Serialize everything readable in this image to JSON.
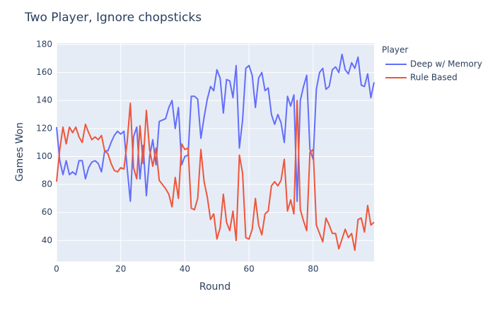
{
  "chart_data": {
    "type": "line",
    "title": "Two Player, Ignore chopsticks",
    "x_label": "Round",
    "y_label": "Games Won",
    "legend_title": "Player",
    "x": [
      0,
      1,
      2,
      3,
      4,
      5,
      6,
      7,
      8,
      9,
      10,
      11,
      12,
      13,
      14,
      15,
      16,
      17,
      18,
      19,
      20,
      21,
      22,
      23,
      24,
      25,
      26,
      27,
      28,
      29,
      30,
      31,
      32,
      33,
      34,
      35,
      36,
      37,
      38,
      39,
      40,
      41,
      42,
      43,
      44,
      45,
      46,
      47,
      48,
      49,
      50,
      51,
      52,
      53,
      54,
      55,
      56,
      57,
      58,
      59,
      60,
      61,
      62,
      63,
      64,
      65,
      66,
      67,
      68,
      69,
      70,
      71,
      72,
      73,
      74,
      75,
      76,
      77,
      78,
      79,
      80,
      81,
      82,
      83,
      84,
      85,
      86,
      87,
      88,
      89,
      90,
      91,
      92,
      93,
      94,
      95,
      96,
      97,
      98,
      99
    ],
    "series": [
      {
        "name": "Deep w/ Memory",
        "color": "#636efa",
        "values": [
          121,
          97,
          87,
          97,
          87,
          89,
          87,
          97,
          97,
          84,
          92,
          96,
          97,
          95,
          89,
          104,
          104,
          110,
          115,
          118,
          116,
          118,
          92,
          68,
          114,
          121,
          84,
          108,
          72,
          100,
          112,
          94,
          125,
          126,
          127,
          135,
          140,
          120,
          135,
          94,
          100,
          101,
          143,
          143,
          141,
          113,
          128,
          141,
          150,
          147,
          162,
          156,
          131,
          155,
          154,
          142,
          165,
          106,
          126,
          163,
          165,
          158,
          135,
          156,
          160,
          147,
          149,
          130,
          123,
          130,
          124,
          110,
          143,
          136,
          144,
          68,
          140,
          150,
          158,
          105,
          98,
          148,
          160,
          163,
          148,
          150,
          162,
          164,
          160,
          173,
          162,
          159,
          167,
          163,
          171,
          151,
          150,
          159,
          142,
          153
        ]
      },
      {
        "name": "Rule Based",
        "color": "#EF553B",
        "values": [
          82,
          105,
          121,
          109,
          121,
          117,
          121,
          114,
          110,
          123,
          117,
          112,
          114,
          112,
          115,
          104,
          102,
          95,
          90,
          89,
          92,
          91,
          110,
          138,
          92,
          84,
          122,
          95,
          133,
          105,
          93,
          106,
          83,
          80,
          77,
          73,
          64,
          85,
          70,
          109,
          105,
          106,
          63,
          62,
          70,
          105,
          82,
          71,
          55,
          59,
          41,
          49,
          73,
          53,
          47,
          61,
          40,
          101,
          88,
          42,
          41,
          48,
          70,
          51,
          44,
          59,
          61,
          79,
          82,
          79,
          83,
          98,
          61,
          69,
          59,
          140,
          62,
          54,
          47,
          103,
          105,
          51,
          45,
          39,
          56,
          51,
          45,
          45,
          34,
          41,
          48,
          42,
          45,
          33,
          55,
          56,
          46,
          65,
          51,
          53
        ]
      }
    ],
    "xlim": [
      0,
      99
    ],
    "xticks": [
      0,
      20,
      40,
      60,
      80
    ],
    "ylim": [
      25,
      181
    ],
    "yticks": [
      40,
      60,
      80,
      100,
      120,
      140,
      160,
      180
    ],
    "grid": true,
    "legend_position": "right"
  }
}
